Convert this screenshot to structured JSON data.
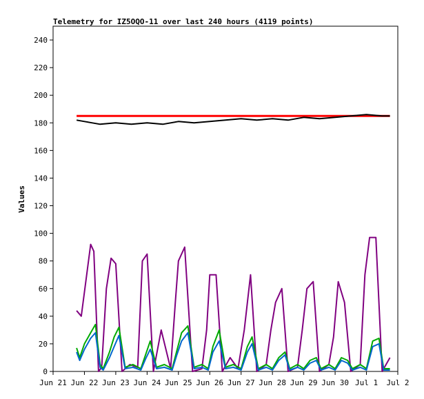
{
  "chart_data": {
    "type": "line",
    "title": "Telemetry for IZ5OQO-11 over last 240 hours (4119 points)",
    "xlabel": "",
    "ylabel": "Values",
    "ylim": [
      0,
      250
    ],
    "xlim": [
      "Jun 21",
      "Jul 2"
    ],
    "x_tick_labels": [
      "Jun 21",
      "Jun 22",
      "Jun 23",
      "Jun 24",
      "Jun 25",
      "Jun 26",
      "Jun 27",
      "Jun 28",
      "Jun 29",
      "Jun 30",
      "Jul 1",
      "Jul 2"
    ],
    "y_ticks": [
      0,
      20,
      40,
      60,
      80,
      100,
      120,
      140,
      160,
      180,
      200,
      220,
      240
    ],
    "grid": false,
    "legend": "none",
    "series": [
      {
        "color": "#ff0000",
        "x": [
          0.75,
          1.5,
          2.5,
          3.5,
          4.5,
          5.5,
          6.5,
          7.5,
          8.5,
          9.5,
          10.75
        ],
        "values": [
          185,
          185,
          185,
          185,
          185,
          185,
          185,
          185,
          185,
          185,
          185
        ]
      },
      {
        "color": "#000000",
        "x": [
          0.75,
          1.0,
          1.25,
          1.5,
          2.0,
          2.5,
          3.0,
          3.5,
          4.0,
          4.5,
          5.0,
          5.5,
          6.0,
          6.5,
          7.0,
          7.5,
          8.0,
          8.5,
          9.0,
          9.5,
          10.0,
          10.5,
          10.75
        ],
        "values": [
          182,
          181,
          180,
          179,
          180,
          179,
          180,
          179,
          181,
          180,
          181,
          182,
          183,
          182,
          183,
          182,
          184,
          183,
          184,
          185,
          186,
          185,
          185
        ]
      },
      {
        "color": "#800080",
        "x": [
          0.75,
          0.9,
          1.05,
          1.2,
          1.3,
          1.45,
          1.55,
          1.7,
          1.85,
          2.0,
          2.2,
          2.45,
          2.7,
          2.85,
          3.0,
          3.2,
          3.45,
          3.75,
          3.9,
          4.0,
          4.2,
          4.45,
          4.75,
          4.9,
          5.0,
          5.2,
          5.4,
          5.65,
          5.9,
          6.1,
          6.3,
          6.5,
          6.8,
          6.95,
          7.1,
          7.3,
          7.5,
          7.8,
          7.95,
          8.1,
          8.3,
          8.5,
          8.8,
          8.95,
          9.1,
          9.3,
          9.5,
          9.8,
          9.95,
          10.1,
          10.3,
          10.5,
          10.75
        ],
        "values": [
          44,
          40,
          66,
          92,
          87,
          0,
          3,
          60,
          82,
          78,
          0,
          5,
          3,
          80,
          85,
          0,
          30,
          2,
          50,
          80,
          90,
          0,
          2,
          30,
          70,
          70,
          0,
          10,
          2,
          30,
          70,
          0,
          5,
          30,
          50,
          60,
          0,
          3,
          30,
          60,
          65,
          0,
          5,
          25,
          65,
          50,
          0,
          5,
          70,
          97,
          97,
          0,
          10
        ]
      },
      {
        "color": "#00aa00",
        "x": [
          0.75,
          0.85,
          1.0,
          1.2,
          1.35,
          1.5,
          1.6,
          1.8,
          1.95,
          2.1,
          2.3,
          2.55,
          2.8,
          2.95,
          3.1,
          3.3,
          3.55,
          3.8,
          3.95,
          4.1,
          4.3,
          4.5,
          4.75,
          4.95,
          5.1,
          5.3,
          5.5,
          5.75,
          6.0,
          6.2,
          6.35,
          6.55,
          6.8,
          7.0,
          7.2,
          7.4,
          7.55,
          7.8,
          8.0,
          8.2,
          8.4,
          8.55,
          8.8,
          9.0,
          9.2,
          9.4,
          9.55,
          9.8,
          10.0,
          10.2,
          10.4,
          10.55,
          10.75
        ],
        "values": [
          17,
          10,
          20,
          28,
          34,
          5,
          2,
          14,
          25,
          32,
          3,
          5,
          2,
          12,
          22,
          3,
          5,
          2,
          15,
          28,
          33,
          3,
          5,
          2,
          18,
          30,
          3,
          5,
          2,
          18,
          25,
          2,
          5,
          2,
          10,
          14,
          2,
          5,
          2,
          8,
          10,
          2,
          5,
          2,
          10,
          8,
          2,
          5,
          2,
          22,
          24,
          2,
          2
        ]
      },
      {
        "color": "#0066cc",
        "x": [
          0.75,
          0.85,
          1.0,
          1.2,
          1.35,
          1.5,
          1.6,
          1.8,
          1.95,
          2.1,
          2.3,
          2.55,
          2.8,
          2.95,
          3.1,
          3.3,
          3.55,
          3.8,
          3.95,
          4.1,
          4.3,
          4.5,
          4.75,
          4.95,
          5.1,
          5.3,
          5.5,
          5.75,
          6.0,
          6.2,
          6.35,
          6.55,
          6.8,
          7.0,
          7.2,
          7.4,
          7.55,
          7.8,
          8.0,
          8.2,
          8.4,
          8.55,
          8.8,
          9.0,
          9.2,
          9.4,
          9.55,
          9.8,
          10.0,
          10.2,
          10.4,
          10.55,
          10.75
        ],
        "values": [
          14,
          8,
          16,
          24,
          28,
          3,
          1,
          10,
          18,
          26,
          2,
          3,
          1,
          9,
          16,
          2,
          3,
          1,
          12,
          22,
          28,
          2,
          3,
          1,
          14,
          22,
          2,
          3,
          1,
          14,
          20,
          1,
          3,
          1,
          8,
          12,
          1,
          3,
          1,
          6,
          8,
          1,
          3,
          1,
          8,
          6,
          1,
          3,
          1,
          18,
          20,
          1,
          1
        ]
      }
    ]
  }
}
